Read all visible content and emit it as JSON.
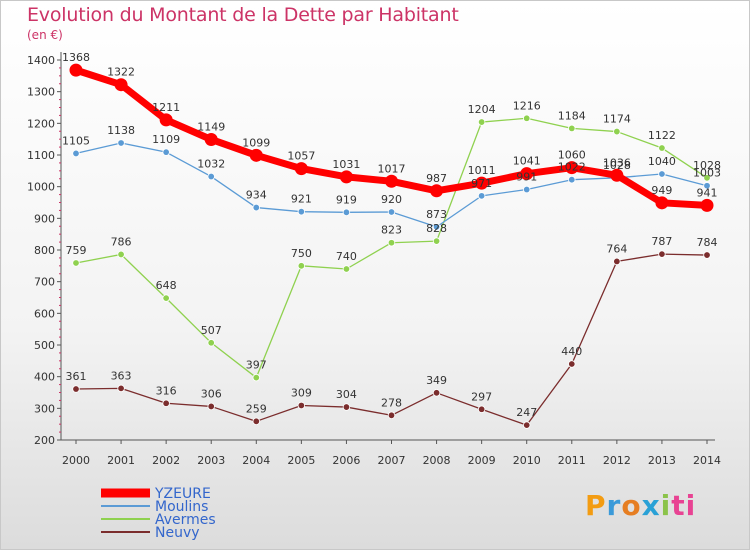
{
  "title": "Evolution du Montant de la Dette par Habitant",
  "unit": "(en €)",
  "logo_text": "Proxiti",
  "chart_data": {
    "type": "line",
    "x": [
      "2000",
      "2001",
      "2002",
      "2003",
      "2004",
      "2005",
      "2006",
      "2007",
      "2008",
      "2009",
      "2010",
      "2011",
      "2012",
      "2013",
      "2014"
    ],
    "ylim": [
      200,
      1400
    ],
    "yticks": [
      "200",
      "300",
      "400",
      "500",
      "600",
      "700",
      "800",
      "900",
      "1000",
      "1100",
      "1200",
      "1300",
      "1400"
    ],
    "grid": false,
    "legend_position": "bottom-left",
    "series": [
      {
        "name": "YZEURE",
        "color": "#ff0000",
        "values": [
          1368,
          1322,
          1211,
          1149,
          1099,
          1057,
          1031,
          1017,
          987,
          1011,
          1041,
          1060,
          1036,
          949,
          941
        ],
        "labels": [
          "1368",
          "1322",
          "1211",
          "1149",
          "1099",
          "1057",
          "1031",
          "1017",
          "987",
          "1011",
          "1041",
          "1060",
          "1036",
          "949",
          "941"
        ]
      },
      {
        "name": "Moulins",
        "color": "#5b9bd5",
        "values": [
          1105,
          1138,
          1109,
          1032,
          934,
          921,
          919,
          920,
          873,
          971,
          991,
          1022,
          1028,
          1040,
          1003
        ],
        "labels": [
          "1105",
          "1138",
          "1109",
          "1032",
          "934",
          "921",
          "919",
          "920",
          "873",
          "971",
          "991",
          "1022",
          "1028",
          "1040",
          "1003"
        ]
      },
      {
        "name": "Avermes",
        "color": "#8fd14f",
        "values": [
          759,
          786,
          648,
          507,
          397,
          750,
          740,
          823,
          828,
          1204,
          1216,
          1184,
          1174,
          1122,
          1028
        ],
        "labels": [
          "759",
          "786",
          "648",
          "507",
          "397",
          "750",
          "740",
          "823",
          "828",
          "1204",
          "1216",
          "1184",
          "1174",
          "1122",
          "1028"
        ]
      },
      {
        "name": "Neuvy",
        "color": "#7b2d2d",
        "values": [
          361,
          363,
          316,
          306,
          259,
          309,
          304,
          278,
          349,
          297,
          247,
          440,
          764,
          787,
          784
        ],
        "labels": [
          "361",
          "363",
          "316",
          "306",
          "259",
          "309",
          "304",
          "278",
          "349",
          "297",
          "247",
          "440",
          "764",
          "787",
          "784"
        ]
      }
    ]
  }
}
